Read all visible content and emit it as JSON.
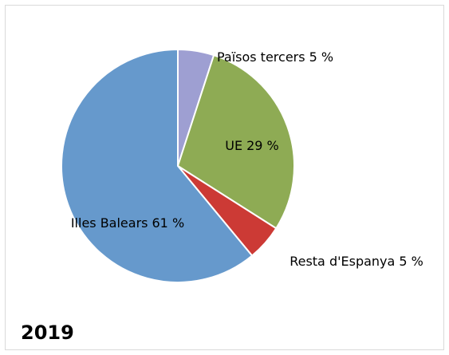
{
  "chart_data": {
    "type": "pie",
    "title": "2019",
    "categories": [
      "Països tercers",
      "UE",
      "Resta d'Espanya",
      "Illes Balears"
    ],
    "values": [
      5,
      29,
      5,
      61
    ],
    "value_labels": [
      "5 %",
      "29 %",
      "5 %",
      "61 %"
    ],
    "colors": [
      "#9e9fd2",
      "#8eab54",
      "#cc3a35",
      "#6699cc"
    ]
  }
}
